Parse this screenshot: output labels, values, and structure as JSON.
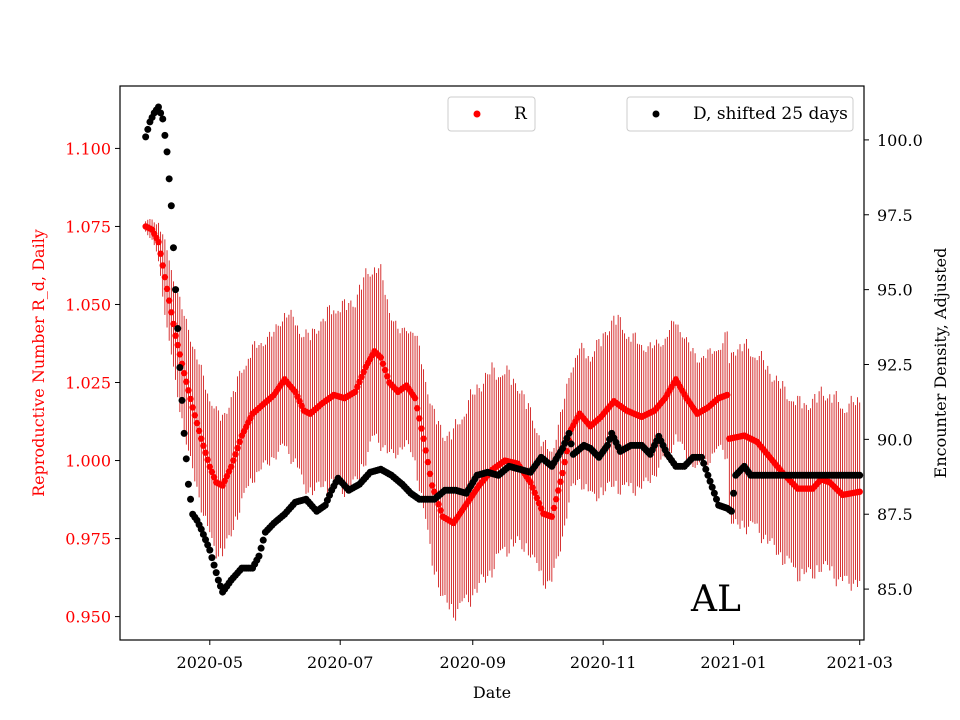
{
  "chart_data": {
    "type": "scatter",
    "region_label": "AL",
    "xlabel": "Date",
    "x_ticks": [
      "2020-05",
      "2020-07",
      "2020-09",
      "2020-11",
      "2021-01",
      "2021-03"
    ],
    "x_tick_days": [
      30,
      91,
      153,
      214,
      275,
      334
    ],
    "x_range_days": [
      -12,
      336
    ],
    "left_axis": {
      "label": "Reproductive Number R_d, Daily",
      "color": "#ff0000",
      "ylim": [
        0.9425,
        1.12
      ],
      "ticks": [
        0.95,
        0.975,
        1.0,
        1.025,
        1.05,
        1.075,
        1.1
      ]
    },
    "right_axis": {
      "label": "Encounter Density, Adjusted",
      "color": "#000000",
      "ylim": [
        83.3,
        101.8
      ],
      "ticks": [
        85.0,
        87.5,
        90.0,
        92.5,
        95.0,
        97.5,
        100.0
      ]
    },
    "series": [
      {
        "name": "R",
        "axis": "left",
        "color": "#ff0000",
        "errorbar_color": "#cc0000",
        "marker": "circle",
        "start_day": 0,
        "end_day": 334,
        "breakpoints": [
          [
            0,
            1.075
          ],
          [
            3,
            1.074
          ],
          [
            6,
            1.07
          ],
          [
            10,
            1.055
          ],
          [
            14,
            1.04
          ],
          [
            18,
            1.028
          ],
          [
            22,
            1.017
          ],
          [
            26,
            1.007
          ],
          [
            30,
            0.998
          ],
          [
            33,
            0.993
          ],
          [
            36,
            0.992
          ],
          [
            40,
            0.998
          ],
          [
            45,
            1.008
          ],
          [
            50,
            1.015
          ],
          [
            55,
            1.018
          ],
          [
            60,
            1.021
          ],
          [
            65,
            1.026
          ],
          [
            70,
            1.022
          ],
          [
            74,
            1.016
          ],
          [
            77,
            1.015
          ],
          [
            82,
            1.018
          ],
          [
            88,
            1.021
          ],
          [
            93,
            1.02
          ],
          [
            98,
            1.022
          ],
          [
            103,
            1.03
          ],
          [
            107,
            1.035
          ],
          [
            110,
            1.033
          ],
          [
            114,
            1.025
          ],
          [
            118,
            1.022
          ],
          [
            122,
            1.024
          ],
          [
            126,
            1.02
          ],
          [
            130,
            1.007
          ],
          [
            134,
            0.992
          ],
          [
            139,
            0.982
          ],
          [
            144,
            0.98
          ],
          [
            150,
            0.986
          ],
          [
            156,
            0.992
          ],
          [
            162,
            0.997
          ],
          [
            168,
            1.0
          ],
          [
            174,
            0.999
          ],
          [
            180,
            0.993
          ],
          [
            186,
            0.983
          ],
          [
            190,
            0.982
          ],
          [
            195,
            0.996
          ],
          [
            199,
            1.01
          ],
          [
            203,
            1.015
          ],
          [
            208,
            1.011
          ],
          [
            213,
            1.014
          ],
          [
            219,
            1.019
          ],
          [
            225,
            1.016
          ],
          [
            232,
            1.014
          ],
          [
            238,
            1.016
          ],
          [
            243,
            1.02
          ],
          [
            248,
            1.026
          ],
          [
            253,
            1.02
          ],
          [
            258,
            1.015
          ],
          [
            263,
            1.017
          ],
          [
            268,
            1.02
          ],
          [
            272,
            1.021
          ],
          [
            273,
            1.007
          ],
          [
            280,
            1.008
          ],
          [
            286,
            1.006
          ],
          [
            292,
            1.001
          ],
          [
            298,
            0.996
          ],
          [
            305,
            0.991
          ],
          [
            312,
            0.991
          ],
          [
            316,
            0.994
          ],
          [
            320,
            0.993
          ],
          [
            326,
            0.989
          ],
          [
            334,
            0.99
          ]
        ],
        "ci_halfwidth_breakpoints": [
          [
            0,
            0.002
          ],
          [
            5,
            0.005
          ],
          [
            10,
            0.014
          ],
          [
            15,
            0.018
          ],
          [
            20,
            0.022
          ],
          [
            30,
            0.025
          ],
          [
            60,
            0.022
          ],
          [
            90,
            0.032
          ],
          [
            100,
            0.033
          ],
          [
            110,
            0.03
          ],
          [
            120,
            0.02
          ],
          [
            150,
            0.035
          ],
          [
            160,
            0.036
          ],
          [
            180,
            0.025
          ],
          [
            200,
            0.022
          ],
          [
            220,
            0.03
          ],
          [
            240,
            0.022
          ],
          [
            270,
            0.018
          ],
          [
            275,
            0.032
          ],
          [
            300,
            0.03
          ],
          [
            334,
            0.032
          ]
        ]
      },
      {
        "name": "D, shifted 25 days",
        "axis": "right",
        "color": "#000000",
        "marker": "circle",
        "start_day": 0,
        "end_day": 334,
        "breakpoints": [
          [
            0,
            100.1
          ],
          [
            2,
            100.6
          ],
          [
            4,
            100.9
          ],
          [
            6,
            101.1
          ],
          [
            8,
            100.7
          ],
          [
            10,
            99.6
          ],
          [
            12,
            97.8
          ],
          [
            14,
            95.0
          ],
          [
            16,
            92.4
          ],
          [
            18,
            90.2
          ],
          [
            20,
            88.5
          ],
          [
            22,
            87.5
          ],
          [
            24,
            87.3
          ],
          [
            26,
            87.0
          ],
          [
            30,
            86.3
          ],
          [
            34,
            85.3
          ],
          [
            36,
            84.9
          ],
          [
            40,
            85.3
          ],
          [
            45,
            85.7
          ],
          [
            50,
            85.7
          ],
          [
            53,
            86.1
          ],
          [
            56,
            86.9
          ],
          [
            60,
            87.2
          ],
          [
            65,
            87.5
          ],
          [
            70,
            87.9
          ],
          [
            75,
            88.0
          ],
          [
            80,
            87.6
          ],
          [
            84,
            87.8
          ],
          [
            87,
            88.3
          ],
          [
            90,
            88.7
          ],
          [
            95,
            88.3
          ],
          [
            100,
            88.5
          ],
          [
            105,
            88.9
          ],
          [
            110,
            89.0
          ],
          [
            115,
            88.8
          ],
          [
            120,
            88.5
          ],
          [
            124,
            88.2
          ],
          [
            128,
            88.0
          ],
          [
            135,
            88.0
          ],
          [
            140,
            88.3
          ],
          [
            145,
            88.3
          ],
          [
            150,
            88.2
          ],
          [
            155,
            88.8
          ],
          [
            160,
            88.9
          ],
          [
            165,
            88.8
          ],
          [
            170,
            89.1
          ],
          [
            175,
            89.0
          ],
          [
            180,
            88.9
          ],
          [
            185,
            89.4
          ],
          [
            190,
            89.1
          ],
          [
            195,
            89.7
          ],
          [
            198,
            90.2
          ],
          [
            200,
            89.5
          ],
          [
            205,
            89.8
          ],
          [
            208,
            89.7
          ],
          [
            212,
            89.4
          ],
          [
            216,
            89.8
          ],
          [
            218,
            90.2
          ],
          [
            222,
            89.6
          ],
          [
            227,
            89.8
          ],
          [
            232,
            89.8
          ],
          [
            236,
            89.5
          ],
          [
            240,
            90.1
          ],
          [
            244,
            89.5
          ],
          [
            248,
            89.1
          ],
          [
            252,
            89.1
          ],
          [
            256,
            89.4
          ],
          [
            260,
            89.4
          ],
          [
            264,
            88.6
          ],
          [
            268,
            87.8
          ],
          [
            272,
            87.7
          ],
          [
            274,
            87.6
          ],
          [
            276,
            88.8
          ],
          [
            280,
            89.1
          ],
          [
            283,
            88.8
          ],
          [
            334,
            88.8
          ]
        ]
      }
    ]
  }
}
